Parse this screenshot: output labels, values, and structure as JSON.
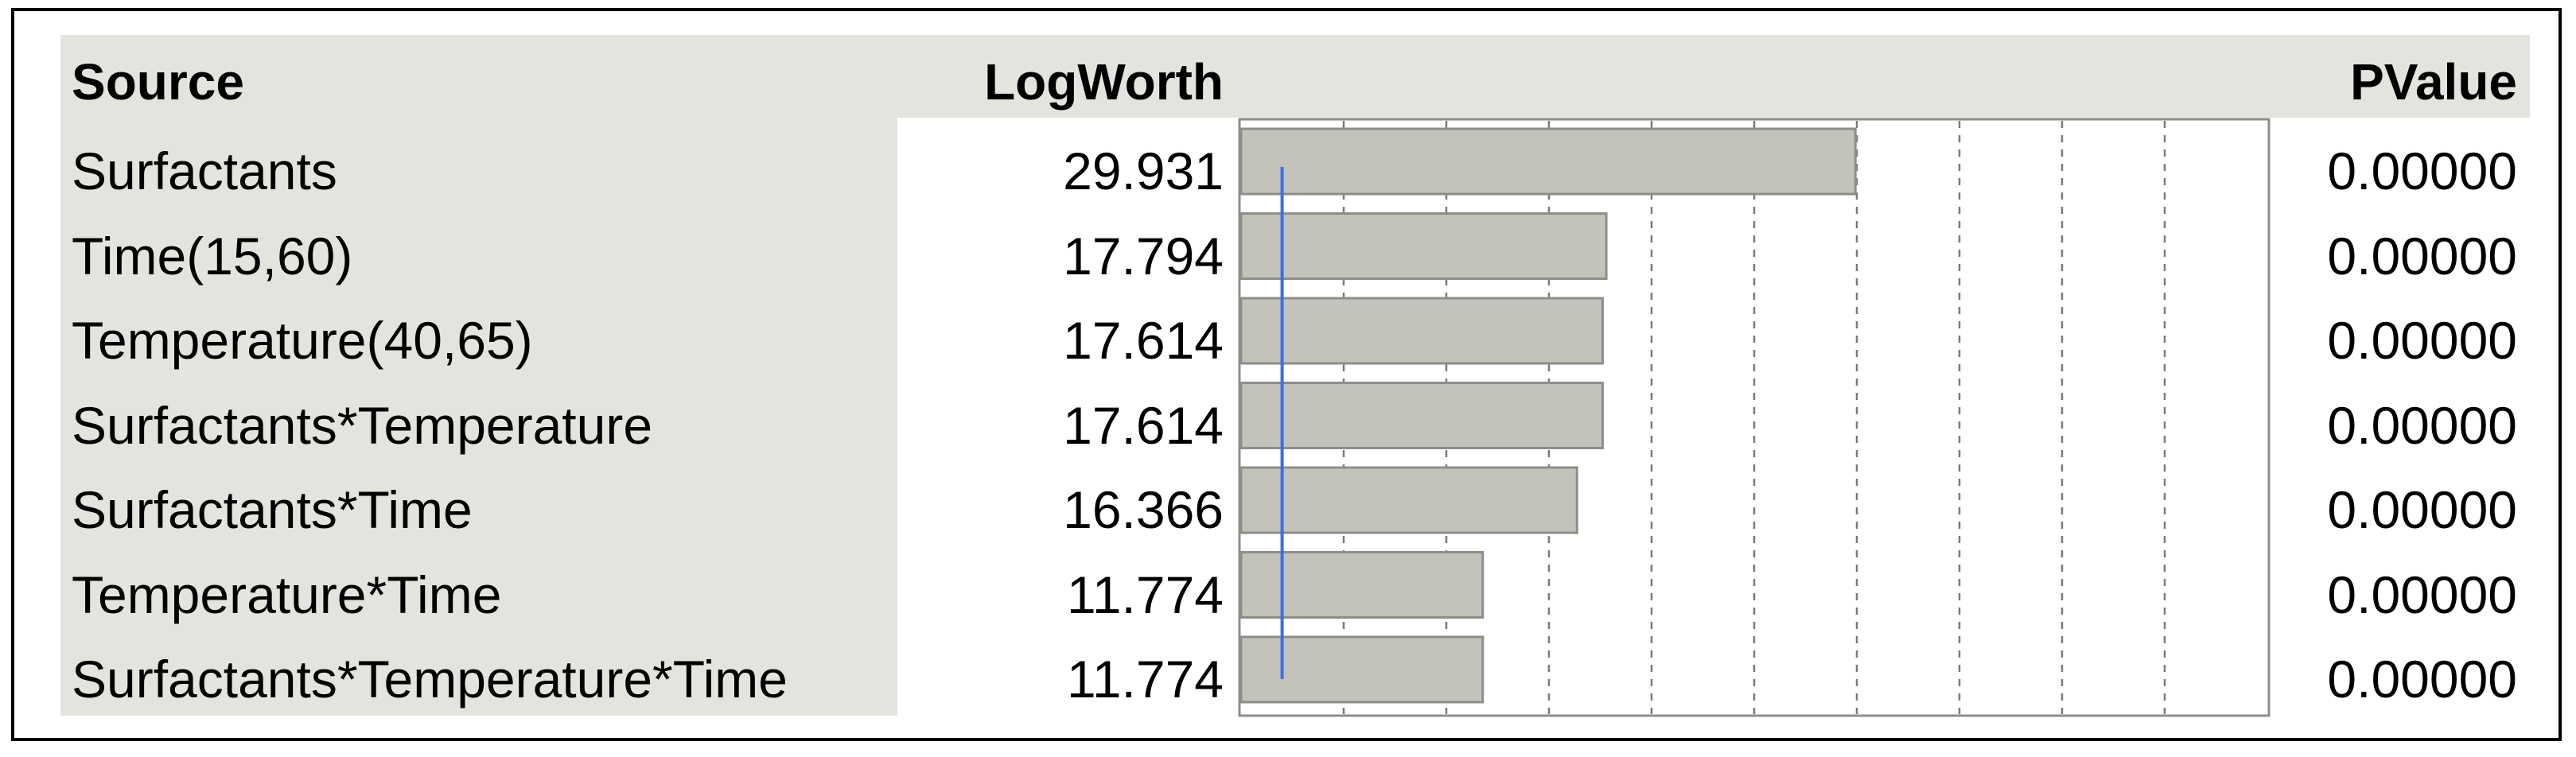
{
  "table": {
    "headers": {
      "source": "Source",
      "logworth": "LogWorth",
      "bar": "",
      "pvalue": "PValue"
    },
    "rows": [
      {
        "source": "Surfactants",
        "logworth": "29.931",
        "pvalue": "0.00000"
      },
      {
        "source": "Time(15,60)",
        "logworth": "17.794",
        "pvalue": "0.00000"
      },
      {
        "source": "Temperature(40,65)",
        "logworth": "17.614",
        "pvalue": "0.00000"
      },
      {
        "source": "Surfactants*Temperature",
        "logworth": "17.614",
        "pvalue": "0.00000"
      },
      {
        "source": "Surfactants*Time",
        "logworth": "16.366",
        "pvalue": "0.00000"
      },
      {
        "source": "Temperature*Time",
        "logworth": "11.774",
        "pvalue": "0.00000"
      },
      {
        "source": "Surfactants*Temperature*Time",
        "logworth": "11.774",
        "pvalue": "0.00000"
      }
    ]
  },
  "chart_data": {
    "type": "bar",
    "orientation": "horizontal",
    "categories": [
      "Surfactants",
      "Time(15,60)",
      "Temperature(40,65)",
      "Surfactants*Temperature",
      "Surfactants*Time",
      "Temperature*Time",
      "Surfactants*Temperature*Time"
    ],
    "values": [
      29.931,
      17.794,
      17.614,
      17.614,
      16.366,
      11.774,
      11.774
    ],
    "xlim": [
      0,
      50
    ],
    "gridlines": [
      5,
      10,
      15,
      20,
      25,
      30,
      35,
      40,
      45
    ],
    "grid": true,
    "reference_line": 2,
    "colors": {
      "bar_fill": "#c4c3bb",
      "bar_stroke": "#8e8e88",
      "reference_line": "#3d6fe0",
      "grid": "#7a7a7a",
      "header_bg": "#e4e4df"
    }
  }
}
